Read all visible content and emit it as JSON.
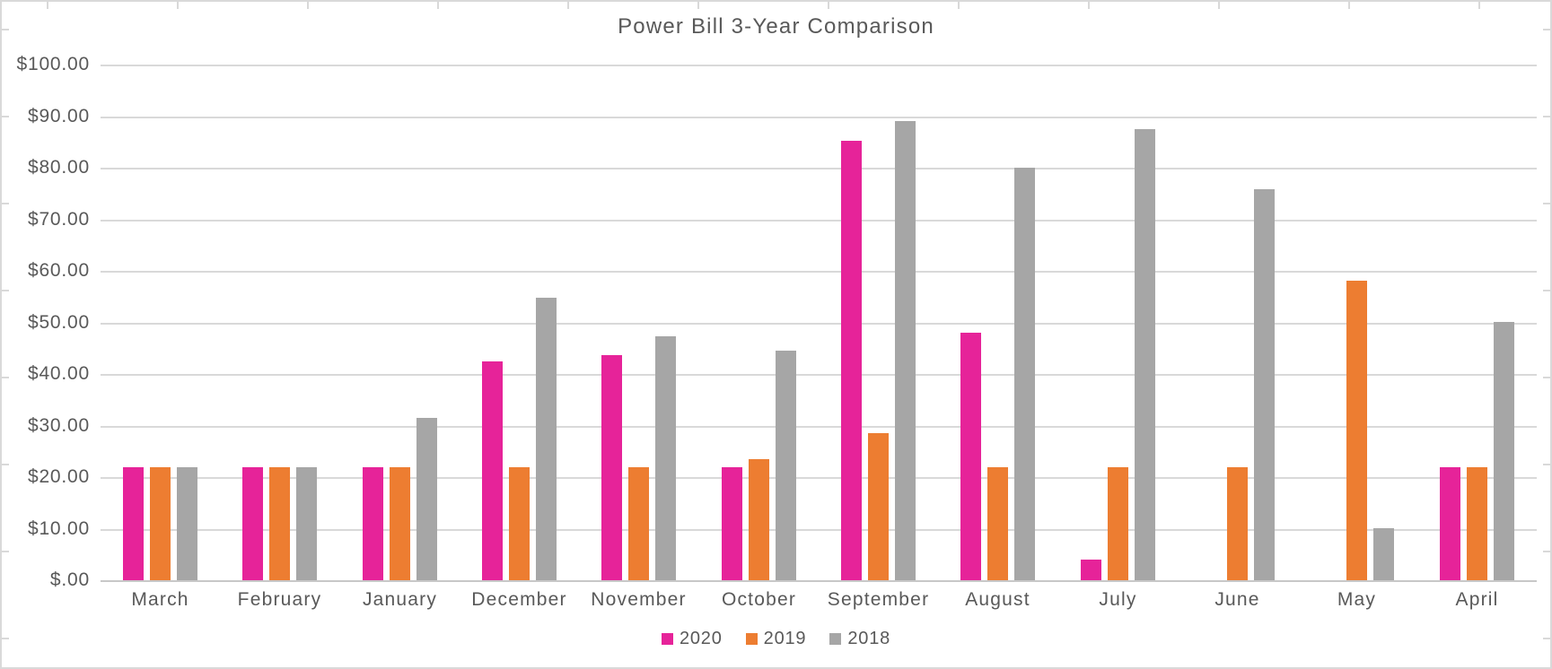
{
  "window": {
    "background": "#FFFFFF",
    "frame_border_color": "#D9D9D9"
  },
  "chart_data": {
    "type": "bar",
    "title": "Power Bill 3-Year Comparison",
    "categories": [
      "March",
      "February",
      "January",
      "December",
      "November",
      "October",
      "September",
      "August",
      "July",
      "June",
      "May",
      "April"
    ],
    "series": [
      {
        "name": "2020",
        "color": "#E62399",
        "values": [
          21.9,
          21.9,
          21.9,
          42.5,
          43.7,
          21.9,
          85.3,
          48.0,
          4.0,
          0,
          0,
          21.9
        ]
      },
      {
        "name": "2019",
        "color": "#ED7D31",
        "values": [
          21.9,
          21.9,
          21.9,
          21.9,
          21.9,
          23.5,
          28.6,
          21.9,
          21.9,
          21.9,
          58.0,
          21.9
        ]
      },
      {
        "name": "2018",
        "color": "#A6A6A6",
        "values": [
          21.9,
          21.9,
          31.5,
          54.7,
          47.3,
          44.5,
          89.0,
          80.0,
          87.5,
          75.8,
          10.1,
          50.0
        ]
      }
    ],
    "xlabel": "",
    "ylabel": "",
    "ylim": [
      0,
      100
    ],
    "y_tick_labels_top_to_bottom": [
      "$100.00",
      "$90.00",
      "$80.00",
      "$70.00",
      "$60.00",
      "$50.00",
      "$40.00",
      "$30.00",
      "$20.00",
      "$10.00",
      "$.00"
    ],
    "grid": true,
    "gridline_color": "#D9D9D9",
    "axis_line_color": "#C8C8C8",
    "text_color": "#595959",
    "legend_position": "bottom"
  }
}
